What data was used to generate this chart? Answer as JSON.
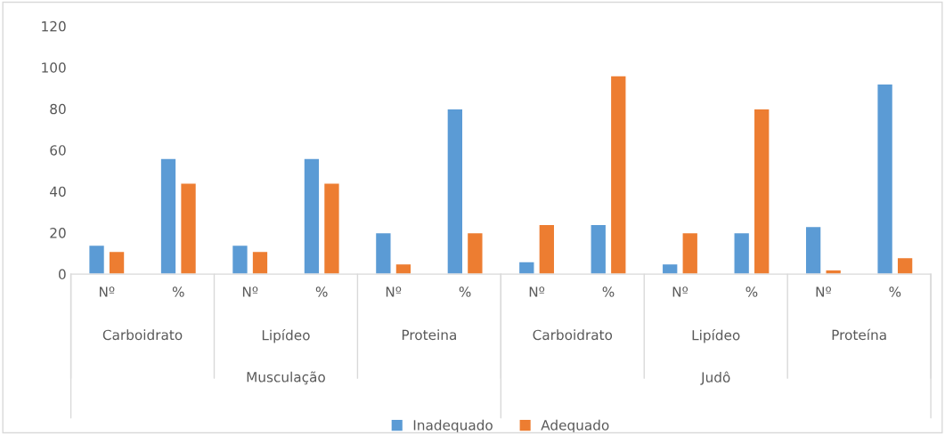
{
  "chart_data": {
    "type": "bar",
    "categories": [
      "Nº",
      "%",
      "Nº",
      "%",
      "Nº",
      "%",
      "Nº",
      "%",
      "Nº",
      "%",
      "Nº",
      "%"
    ],
    "series": [
      {
        "name": "Inadequado",
        "color": "#5b9bd5",
        "values": [
          14,
          56,
          14,
          56,
          20,
          80,
          6,
          24,
          5,
          20,
          23,
          92
        ]
      },
      {
        "name": "Adequado",
        "color": "#ed7d31",
        "values": [
          11,
          44,
          11,
          44,
          5,
          20,
          24,
          96,
          20,
          80,
          2,
          8
        ]
      }
    ],
    "annotations": [
      "Carboidrato",
      "Lipídeo",
      "Proteina",
      "Carboidrato",
      "Lipídeo",
      "Proteína",
      "Musculação",
      "Judô"
    ],
    "ylim": [
      0,
      120
    ],
    "yticks": [
      0,
      20,
      40,
      60,
      80,
      100,
      120
    ],
    "grid": false,
    "legend": "bottom"
  }
}
